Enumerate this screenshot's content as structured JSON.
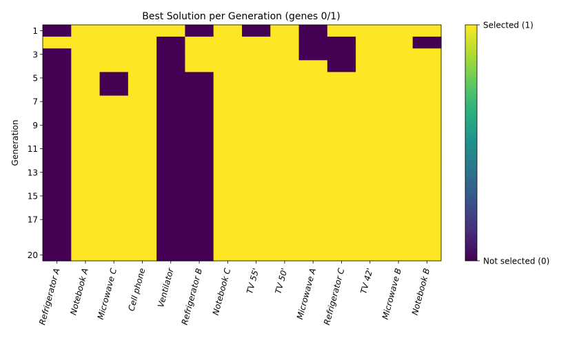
{
  "chart_data": {
    "type": "heatmap",
    "title": "Best Solution per Generation (genes 0/1)",
    "xlabel": "",
    "ylabel": "Generation",
    "x_categories": [
      "Refrigerator A",
      "Notebook A",
      "Microwave C",
      "Cell phone",
      "Ventilator",
      "Refrigerator B",
      "Notebook C",
      "TV 55'",
      "TV 50'",
      "Microwave A",
      "Refrigerator C",
      "TV 42'",
      "Microwave B",
      "Notebook B"
    ],
    "generations": [
      1,
      2,
      3,
      4,
      5,
      6,
      7,
      8,
      9,
      10,
      11,
      12,
      13,
      14,
      15,
      16,
      17,
      18,
      19,
      20
    ],
    "y_tick_labels": [
      "1",
      "3",
      "5",
      "7",
      "9",
      "11",
      "13",
      "15",
      "17",
      "20"
    ],
    "y_tick_generations": [
      1,
      3,
      5,
      7,
      9,
      11,
      13,
      15,
      17,
      20
    ],
    "values": [
      [
        0,
        1,
        1,
        1,
        1,
        0,
        1,
        0,
        1,
        0,
        1,
        1,
        1,
        1
      ],
      [
        1,
        1,
        1,
        1,
        0,
        1,
        1,
        1,
        1,
        0,
        0,
        1,
        1,
        0
      ],
      [
        0,
        1,
        1,
        1,
        0,
        1,
        1,
        1,
        1,
        0,
        0,
        1,
        1,
        1
      ],
      [
        0,
        1,
        1,
        1,
        0,
        1,
        1,
        1,
        1,
        1,
        0,
        1,
        1,
        1
      ],
      [
        0,
        1,
        0,
        1,
        0,
        0,
        1,
        1,
        1,
        1,
        1,
        1,
        1,
        1
      ],
      [
        0,
        1,
        0,
        1,
        0,
        0,
        1,
        1,
        1,
        1,
        1,
        1,
        1,
        1
      ],
      [
        0,
        1,
        1,
        1,
        0,
        0,
        1,
        1,
        1,
        1,
        1,
        1,
        1,
        1
      ],
      [
        0,
        1,
        1,
        1,
        0,
        0,
        1,
        1,
        1,
        1,
        1,
        1,
        1,
        1
      ],
      [
        0,
        1,
        1,
        1,
        0,
        0,
        1,
        1,
        1,
        1,
        1,
        1,
        1,
        1
      ],
      [
        0,
        1,
        1,
        1,
        0,
        0,
        1,
        1,
        1,
        1,
        1,
        1,
        1,
        1
      ],
      [
        0,
        1,
        1,
        1,
        0,
        0,
        1,
        1,
        1,
        1,
        1,
        1,
        1,
        1
      ],
      [
        0,
        1,
        1,
        1,
        0,
        0,
        1,
        1,
        1,
        1,
        1,
        1,
        1,
        1
      ],
      [
        0,
        1,
        1,
        1,
        0,
        0,
        1,
        1,
        1,
        1,
        1,
        1,
        1,
        1
      ],
      [
        0,
        1,
        1,
        1,
        0,
        0,
        1,
        1,
        1,
        1,
        1,
        1,
        1,
        1
      ],
      [
        0,
        1,
        1,
        1,
        0,
        0,
        1,
        1,
        1,
        1,
        1,
        1,
        1,
        1
      ],
      [
        0,
        1,
        1,
        1,
        0,
        0,
        1,
        1,
        1,
        1,
        1,
        1,
        1,
        1
      ],
      [
        0,
        1,
        1,
        1,
        0,
        0,
        1,
        1,
        1,
        1,
        1,
        1,
        1,
        1
      ],
      [
        0,
        1,
        1,
        1,
        0,
        0,
        1,
        1,
        1,
        1,
        1,
        1,
        1,
        1
      ],
      [
        0,
        1,
        1,
        1,
        0,
        0,
        1,
        1,
        1,
        1,
        1,
        1,
        1,
        1
      ],
      [
        0,
        1,
        1,
        1,
        0,
        0,
        1,
        1,
        1,
        1,
        1,
        1,
        1,
        1
      ]
    ],
    "colorbar": {
      "range": [
        0,
        1
      ],
      "tick_labels": [
        "Not selected (0)",
        "Selected (1)"
      ],
      "colormap": "viridis"
    },
    "colors": {
      "selected": "#fde725",
      "not_selected": "#440154"
    },
    "grid": false
  }
}
